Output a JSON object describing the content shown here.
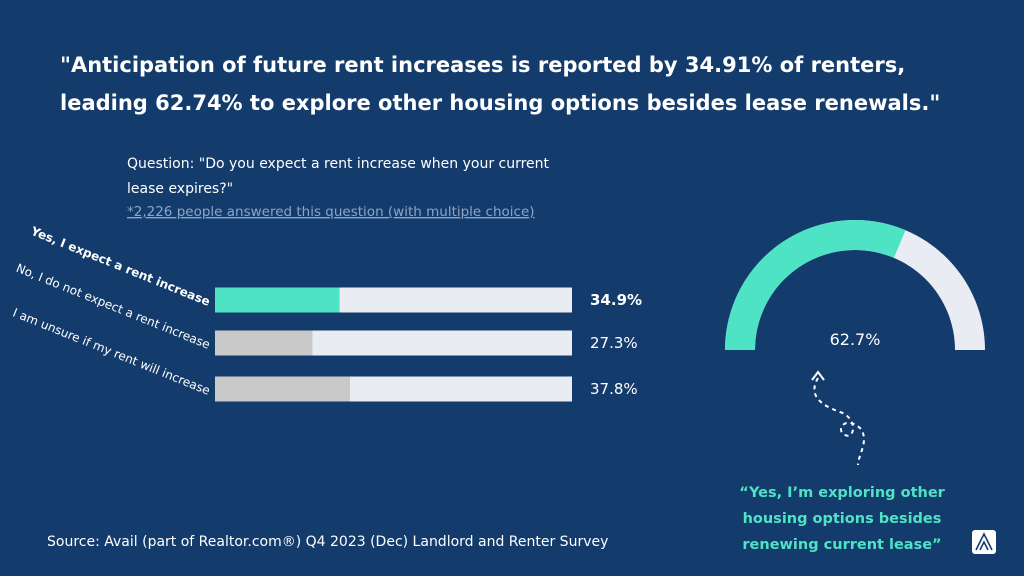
{
  "header": {
    "title": [
      "\"Anticipation of future rent increases is reported by 34.91% of renters,",
      "leading 62.74% to explore other housing options besides lease renewals.\""
    ]
  },
  "source": "Source: Avail (part of Realtor.com®) Q4 2023 (Dec) Landlord and Renter Survey",
  "chart_data": [
    {
      "type": "bar",
      "title": [
        "Question: \"Do you expect a rent increase when your current",
        "lease expires?\""
      ],
      "subtitle": "*2,226 people answered this question (with multiple choice)",
      "categories": [
        "Yes, I expect a rent increase",
        "No, I do not expect a rent increase",
        "I am unsure if my rent will increase"
      ],
      "values": [
        34.9,
        27.3,
        37.8
      ],
      "value_labels": [
        "34.9%",
        "27.3%",
        "37.8%"
      ],
      "colors": [
        "#4fe3c5",
        "#c9c9c9",
        "#c9c9c9"
      ],
      "track_color": "#e9ecf2",
      "xlim": [
        0,
        100
      ]
    },
    {
      "type": "gauge",
      "value": 62.7,
      "value_label": "62.7%",
      "lim": [
        0,
        100
      ],
      "color": "#4fe3c5",
      "track_color": "#e9ecf2",
      "caption": [
        "“Yes, I’m exploring other",
        "housing options besides",
        "renewing current lease”"
      ]
    }
  ]
}
